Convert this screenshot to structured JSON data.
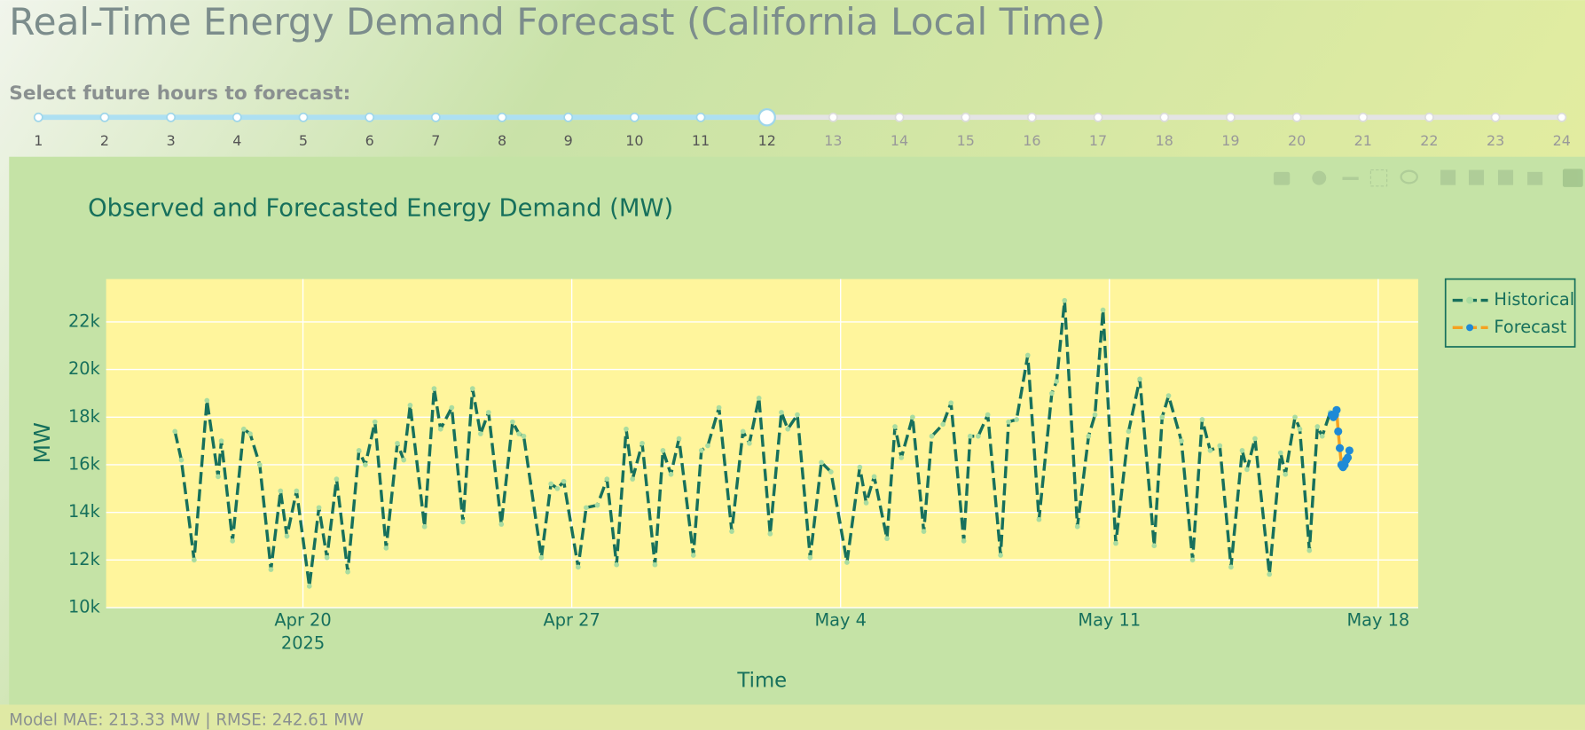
{
  "header": {
    "title": "Real-Time Energy Demand Forecast (California Local Time)"
  },
  "slider": {
    "label": "Select future hours to forecast:",
    "marks": [
      1,
      2,
      3,
      4,
      5,
      6,
      7,
      8,
      9,
      10,
      11,
      12,
      13,
      14,
      15,
      16,
      17,
      18,
      19,
      20,
      21,
      22,
      23,
      24
    ],
    "value": 12
  },
  "chart_data": {
    "type": "line",
    "title": "Observed and Forecasted Energy Demand (MW)",
    "x_label": "Time",
    "y_label": "MW",
    "xlim": [
      "2025-04-14 21:00",
      "2025-05-19 01:00"
    ],
    "xticks": [
      {
        "value": "2025-04-20 00:00",
        "label": "Apr 20",
        "sublabel": "2025"
      },
      {
        "value": "2025-04-27 00:00",
        "label": "Apr 27"
      },
      {
        "value": "2025-05-04 00:00",
        "label": "May 4"
      },
      {
        "value": "2025-05-11 00:00",
        "label": "May 11"
      },
      {
        "value": "2025-05-18 00:00",
        "label": "May 18"
      }
    ],
    "ylim": [
      10000,
      23800
    ],
    "yticks": [
      {
        "value": 10000,
        "label": "10k"
      },
      {
        "value": 12000,
        "label": "12k"
      },
      {
        "value": 14000,
        "label": "14k"
      },
      {
        "value": 16000,
        "label": "16k"
      },
      {
        "value": 18000,
        "label": "18k"
      },
      {
        "value": 20000,
        "label": "20k"
      },
      {
        "value": 22000,
        "label": "22k"
      }
    ],
    "grid": true,
    "legend": "right",
    "series": [
      {
        "name": "Historical",
        "color": "#17705c",
        "marker_color": "#a9dca0",
        "line_style": "dash",
        "x": [
          "2025-04-16 16:00",
          "2025-04-16 20:00",
          "2025-04-17 04:00",
          "2025-04-17 12:00",
          "2025-04-17 19:00",
          "2025-04-17 21:00",
          "2025-04-18 04:00",
          "2025-04-18 11:00",
          "2025-04-18 15:00",
          "2025-04-18 21:00",
          "2025-04-19 04:00",
          "2025-04-19 10:00",
          "2025-04-19 14:00",
          "2025-04-19 20:00",
          "2025-04-20 04:00",
          "2025-04-20 10:00",
          "2025-04-20 15:00",
          "2025-04-20 21:00",
          "2025-04-21 04:00",
          "2025-04-21 11:00",
          "2025-04-21 15:00",
          "2025-04-21 21:00",
          "2025-04-22 04:00",
          "2025-04-22 11:00",
          "2025-04-22 15:00",
          "2025-04-22 19:00",
          "2025-04-23 04:00",
          "2025-04-23 10:00",
          "2025-04-23 14:00",
          "2025-04-23 21:00",
          "2025-04-24 04:00",
          "2025-04-24 10:00",
          "2025-04-24 15:00",
          "2025-04-24 20:00",
          "2025-04-25 04:00",
          "2025-04-25 11:00",
          "2025-04-25 15:00",
          "2025-04-25 18:00",
          "2025-04-26 05:00",
          "2025-04-26 11:00",
          "2025-04-26 15:00",
          "2025-04-26 19:00",
          "2025-04-27 04:00",
          "2025-04-27 09:00",
          "2025-04-27 16:00",
          "2025-04-27 22:00",
          "2025-04-28 04:00",
          "2025-04-28 10:00",
          "2025-04-28 14:00",
          "2025-04-28 20:00",
          "2025-04-29 04:00",
          "2025-04-29 09:00",
          "2025-04-29 14:00",
          "2025-04-29 19:00",
          "2025-04-30 04:00",
          "2025-04-30 09:00",
          "2025-04-30 13:00",
          "2025-04-30 20:00",
          "2025-05-01 04:00",
          "2025-05-01 11:00",
          "2025-05-01 15:00",
          "2025-05-01 21:00",
          "2025-05-02 04:00",
          "2025-05-02 11:00",
          "2025-05-02 15:00",
          "2025-05-02 21:00",
          "2025-05-03 05:00",
          "2025-05-03 12:00",
          "2025-05-03 18:00",
          "2025-05-04 04:00",
          "2025-05-04 12:00",
          "2025-05-04 16:00",
          "2025-05-04 21:00",
          "2025-05-05 05:00",
          "2025-05-05 10:00",
          "2025-05-05 14:00",
          "2025-05-05 21:00",
          "2025-05-06 04:00",
          "2025-05-06 09:00",
          "2025-05-06 16:00",
          "2025-05-06 21:00",
          "2025-05-07 05:00",
          "2025-05-07 09:00",
          "2025-05-07 14:00",
          "2025-05-07 20:00",
          "2025-05-08 04:00",
          "2025-05-08 09:00",
          "2025-05-08 14:00",
          "2025-05-08 21:00",
          "2025-05-09 04:00",
          "2025-05-09 12:00",
          "2025-05-09 15:00",
          "2025-05-09 20:00",
          "2025-05-10 04:00",
          "2025-05-10 11:00",
          "2025-05-10 15:00",
          "2025-05-10 20:00",
          "2025-05-11 04:00",
          "2025-05-11 12:00",
          "2025-05-11 19:00",
          "2025-05-12 04:00",
          "2025-05-12 09:00",
          "2025-05-12 13:00",
          "2025-05-12 21:00",
          "2025-05-13 04:00",
          "2025-05-13 10:00",
          "2025-05-13 15:00",
          "2025-05-13 21:00",
          "2025-05-14 04:00",
          "2025-05-14 11:00",
          "2025-05-14 14:00",
          "2025-05-14 19:00",
          "2025-05-15 04:00",
          "2025-05-15 11:00",
          "2025-05-15 14:00",
          "2025-05-15 20:00",
          "2025-05-15 23:00",
          "2025-05-16 05:00",
          "2025-05-16 10:00",
          "2025-05-16 13:00",
          "2025-05-16 18:00"
        ],
        "values": [
          17400,
          16200,
          12000,
          18700,
          15500,
          17000,
          12800,
          17500,
          17300,
          16000,
          11600,
          14900,
          13000,
          14900,
          10900,
          14200,
          12100,
          15400,
          11500,
          16600,
          16000,
          17800,
          12500,
          16900,
          16200,
          18500,
          13400,
          19200,
          17500,
          18400,
          13600,
          19200,
          17300,
          18200,
          13500,
          17800,
          17300,
          17200,
          12100,
          15200,
          15000,
          15300,
          11700,
          14200,
          14300,
          15400,
          11800,
          17500,
          15400,
          16900,
          11800,
          16600,
          15600,
          17100,
          12200,
          16600,
          16800,
          18400,
          13200,
          17400,
          16900,
          18800,
          13100,
          18200,
          17500,
          18100,
          12100,
          16100,
          15700,
          11900,
          15900,
          14400,
          15500,
          12900,
          17600,
          16300,
          18000,
          13200,
          17200,
          17700,
          18600,
          12800,
          17200,
          17200,
          18100,
          12200,
          17800,
          17900,
          20600,
          13700,
          19000,
          19500,
          22900,
          13400,
          17200,
          18100,
          22500,
          12700,
          17400,
          19600,
          12600,
          18000,
          18900,
          17000,
          12000,
          17900,
          16600,
          16800,
          11700,
          16600,
          15800,
          17100,
          11400,
          16500,
          15600,
          18000,
          17500,
          12400,
          17600,
          17200,
          18200
        ]
      },
      {
        "name": "Forecast",
        "color": "#f5a11f",
        "marker_color": "#1f8ad6",
        "line_style": "dash",
        "x": [
          "2025-05-16 19:00",
          "2025-05-16 20:00",
          "2025-05-16 21:00",
          "2025-05-16 22:00",
          "2025-05-16 23:00",
          "2025-05-17 00:00",
          "2025-05-17 01:00",
          "2025-05-17 02:00",
          "2025-05-17 03:00",
          "2025-05-17 04:00",
          "2025-05-17 05:00",
          "2025-05-17 06:00"
        ],
        "values": [
          18100,
          18000,
          18100,
          18300,
          17400,
          16700,
          16000,
          15900,
          16000,
          16200,
          16300,
          16600
        ]
      }
    ]
  },
  "footer": {
    "text": "Model MAE: 213.33 MW | RMSE: 242.61 MW"
  }
}
